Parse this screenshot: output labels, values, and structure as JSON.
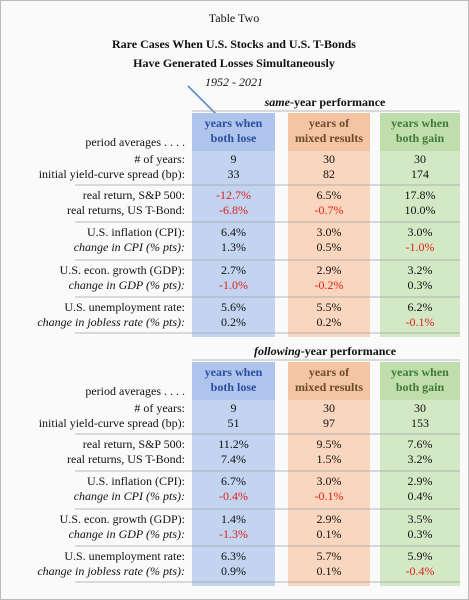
{
  "header": {
    "label": "Table Two",
    "title_lines": [
      "Rare Cases When U.S. Stocks and U.S. T-Bonds",
      "Have Generated Losses Simultaneously"
    ],
    "subtitle": "1952 - 2021"
  },
  "sections": [
    {
      "heading_emph": "same",
      "heading_rest": "-year performance",
      "row_header": "period averages . . . .",
      "columns": [
        [
          "years when",
          "both lose"
        ],
        [
          "years of",
          "mixed results"
        ],
        [
          "years when",
          "both gain"
        ]
      ],
      "groups": [
        [
          {
            "label": "# of years:",
            "cells": [
              "9",
              "30",
              "30"
            ]
          },
          {
            "label": "initial yield-curve spread (bp):",
            "cells": [
              "33",
              "82",
              "174"
            ]
          }
        ],
        [
          {
            "label": "real return, S&P 500:",
            "cells": [
              "-12.7%",
              "6.5%",
              "17.8%"
            ]
          },
          {
            "label": "real returns, US T-Bond:",
            "cells": [
              "-6.8%",
              "-0.7%",
              "10.0%"
            ]
          }
        ],
        [
          {
            "label": "U.S. inflation (CPI):",
            "cells": [
              "6.4%",
              "3.0%",
              "3.0%"
            ]
          },
          {
            "label": "change in CPI (% pts):",
            "cells": [
              "1.3%",
              "0.5%",
              "-1.0%"
            ]
          }
        ],
        [
          {
            "label": "U.S. econ. growth (GDP):",
            "cells": [
              "2.7%",
              "2.9%",
              "3.2%"
            ]
          },
          {
            "label": "change in GDP (% pts):",
            "cells": [
              "-1.0%",
              "-0.2%",
              "0.3%"
            ]
          }
        ],
        [
          {
            "label": "U.S. unemployment rate:",
            "cells": [
              "5.6%",
              "5.5%",
              "6.2%"
            ]
          },
          {
            "label": "change in jobless rate (% pts):",
            "cells": [
              "0.2%",
              "0.2%",
              "-0.1%"
            ]
          }
        ]
      ]
    },
    {
      "heading_emph": "following",
      "heading_rest": "-year performance",
      "row_header": "period averages . . . .",
      "columns": [
        [
          "years when",
          "both lose"
        ],
        [
          "years of",
          "mixed results"
        ],
        [
          "years when",
          "both gain"
        ]
      ],
      "groups": [
        [
          {
            "label": "# of years:",
            "cells": [
              "9",
              "30",
              "30"
            ]
          },
          {
            "label": "initial yield-curve spread (bp):",
            "cells": [
              "51",
              "97",
              "153"
            ]
          }
        ],
        [
          {
            "label": "real return, S&P 500:",
            "cells": [
              "11.2%",
              "9.5%",
              "7.6%"
            ]
          },
          {
            "label": "real returns, US T-Bond:",
            "cells": [
              "7.4%",
              "1.5%",
              "3.2%"
            ]
          }
        ],
        [
          {
            "label": "U.S. inflation (CPI):",
            "cells": [
              "6.7%",
              "3.0%",
              "2.9%"
            ]
          },
          {
            "label": "change in CPI (% pts):",
            "cells": [
              "-0.4%",
              "-0.1%",
              "0.4%"
            ]
          }
        ],
        [
          {
            "label": "U.S. econ. growth (GDP):",
            "cells": [
              "1.4%",
              "2.9%",
              "3.5%"
            ]
          },
          {
            "label": "change in GDP (% pts):",
            "cells": [
              "-1.3%",
              "0.1%",
              "0.3%"
            ]
          }
        ],
        [
          {
            "label": "U.S. unemployment rate:",
            "cells": [
              "6.3%",
              "5.7%",
              "5.9%"
            ]
          },
          {
            "label": "change in jobless rate (% pts):",
            "cells": [
              "0.9%",
              "0.1%",
              "-0.4%"
            ]
          }
        ]
      ]
    }
  ]
}
